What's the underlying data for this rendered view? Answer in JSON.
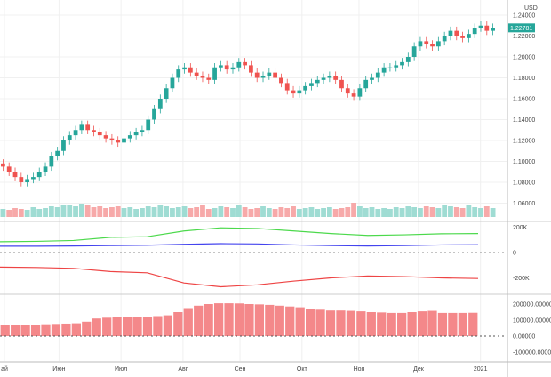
{
  "chart_data": [
    {
      "type": "candlestick",
      "title": "",
      "currency": "USD",
      "last_price_label": "1.22781",
      "last_price": 1.22781,
      "ylim": [
        1.05,
        1.245
      ],
      "yticks": [
        "1.24000",
        "1.22000",
        "1.20000",
        "1.18000",
        "1.16000",
        "1.14000",
        "1.12000",
        "1.10000",
        "1.08000",
        "1.06000"
      ],
      "ytick_values": [
        1.24,
        1.22,
        1.2,
        1.18,
        1.16,
        1.14,
        1.12,
        1.1,
        1.08,
        1.06
      ],
      "xticks": [
        "ай",
        "Июн",
        "Июл",
        "Авг",
        "Сен",
        "Окт",
        "Ноя",
        "Дек",
        "2021"
      ],
      "xtick_positions": [
        0.0,
        0.11,
        0.235,
        0.36,
        0.475,
        0.6,
        0.715,
        0.835,
        0.96
      ],
      "close": [
        1.095,
        1.09,
        1.085,
        1.08,
        1.083,
        1.085,
        1.09,
        1.095,
        1.105,
        1.11,
        1.12,
        1.125,
        1.13,
        1.135,
        1.13,
        1.128,
        1.125,
        1.122,
        1.12,
        1.118,
        1.122,
        1.125,
        1.128,
        1.13,
        1.14,
        1.15,
        1.16,
        1.17,
        1.18,
        1.188,
        1.19,
        1.185,
        1.182,
        1.18,
        1.178,
        1.19,
        1.192,
        1.188,
        1.19,
        1.195,
        1.192,
        1.185,
        1.18,
        1.182,
        1.185,
        1.18,
        1.175,
        1.168,
        1.165,
        1.168,
        1.172,
        1.175,
        1.178,
        1.18,
        1.182,
        1.178,
        1.17,
        1.165,
        1.162,
        1.17,
        1.178,
        1.18,
        1.185,
        1.19,
        1.19,
        1.192,
        1.195,
        1.2,
        1.21,
        1.215,
        1.212,
        1.21,
        1.215,
        1.22,
        1.225,
        1.22,
        1.218,
        1.222,
        1.228,
        1.23,
        1.225,
        1.228
      ],
      "volume": [
        9,
        8,
        10,
        9,
        8,
        11,
        9,
        10,
        12,
        11,
        13,
        14,
        12,
        15,
        13,
        11,
        12,
        10,
        11,
        12,
        10,
        11,
        9,
        10,
        12,
        11,
        13,
        12,
        10,
        11,
        12,
        10,
        11,
        13,
        9,
        10,
        12,
        11,
        10,
        13,
        11,
        9,
        10,
        12,
        10,
        9,
        11,
        10,
        12,
        9,
        10,
        11,
        9,
        10,
        11,
        9,
        10,
        11,
        16,
        12,
        10,
        11,
        9,
        10,
        9,
        11,
        10,
        12,
        11,
        10,
        12,
        11,
        10,
        13,
        12,
        11,
        10,
        14,
        11,
        10,
        12,
        10
      ]
    },
    {
      "type": "line",
      "yticks": [
        "200K",
        "0",
        "-200K"
      ],
      "ytick_values": [
        200000,
        0,
        -200000
      ],
      "ylim": [
        -300000,
        260000
      ],
      "series": [
        {
          "name": "green",
          "color": "#4cd94c",
          "values": [
            85000,
            88000,
            95000,
            120000,
            125000,
            170000,
            195000,
            190000,
            170000,
            150000,
            135000,
            140000,
            148000,
            150000
          ]
        },
        {
          "name": "blue",
          "color": "#4444ee",
          "values": [
            50000,
            50000,
            52000,
            55000,
            58000,
            65000,
            70000,
            68000,
            60000,
            55000,
            52000,
            55000,
            60000,
            62000
          ]
        },
        {
          "name": "red",
          "color": "#ee4444",
          "values": [
            -115000,
            -118000,
            -125000,
            -150000,
            -160000,
            -240000,
            -270000,
            -255000,
            -225000,
            -200000,
            -185000,
            -190000,
            -200000,
            -205000
          ]
        }
      ]
    },
    {
      "type": "bar",
      "yticks": [
        "200000.00000",
        "100000.00000",
        "0.00000",
        "-100000.00000"
      ],
      "ytick_values": [
        200000,
        100000,
        0,
        -100000
      ],
      "ylim": [
        -140000,
        240000
      ],
      "color": "#f4888a",
      "values": [
        70000,
        70000,
        72000,
        72000,
        74000,
        76000,
        78000,
        80000,
        90000,
        110000,
        115000,
        118000,
        120000,
        122000,
        122000,
        125000,
        130000,
        150000,
        175000,
        190000,
        200000,
        205000,
        205000,
        204000,
        200000,
        198000,
        195000,
        190000,
        185000,
        180000,
        170000,
        165000,
        160000,
        160000,
        158000,
        155000,
        150000,
        148000,
        145000,
        145000,
        150000,
        155000,
        158000,
        145000,
        145000,
        145000,
        146000
      ]
    }
  ]
}
